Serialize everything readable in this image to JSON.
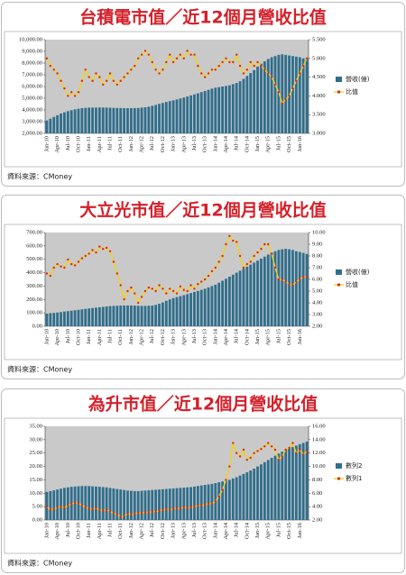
{
  "chart_data": [
    {
      "type": "combo",
      "title": "台積電市值／近12個月營收比值",
      "source": "資料來源：CMoney",
      "categories": [
        "Jan-10",
        null,
        null,
        "Apr-10",
        null,
        null,
        "Jul-10",
        null,
        null,
        "Oct-10",
        null,
        null,
        "Jan-11",
        null,
        null,
        "Apr-11",
        null,
        null,
        "Jul-11",
        null,
        null,
        "Oct-11",
        null,
        null,
        "Jan-12",
        null,
        null,
        "Apr-12",
        null,
        null,
        "Jul-12",
        null,
        null,
        "Oct-12",
        null,
        null,
        "Jan-13",
        null,
        null,
        "Apr-13",
        null,
        null,
        "Jul-13",
        null,
        null,
        "Oct-13",
        null,
        null,
        "Jan-14",
        null,
        null,
        "Apr-14",
        null,
        null,
        "Jul-14",
        null,
        null,
        "Oct-14",
        null,
        null,
        "Jan-15",
        null,
        null,
        "Apr-15",
        null,
        null,
        "Jul-15",
        null,
        null,
        "Oct-15",
        null,
        null,
        "Jan-16",
        null,
        null
      ],
      "series": [
        {
          "name": "營收(億)",
          "type": "bar",
          "color": "#2f6e8c",
          "values": [
            3100,
            3250,
            3400,
            3550,
            3700,
            3800,
            3900,
            3980,
            4050,
            4100,
            4150,
            4180,
            4200,
            4200,
            4200,
            4210,
            4210,
            4200,
            4190,
            4180,
            4170,
            4160,
            4150,
            4150,
            4150,
            4160,
            4170,
            4200,
            4230,
            4280,
            4350,
            4430,
            4520,
            4600,
            4680,
            4750,
            4820,
            4900,
            4980,
            5060,
            5150,
            5240,
            5330,
            5420,
            5520,
            5620,
            5720,
            5820,
            5900,
            5950,
            6000,
            6050,
            6100,
            6200,
            6300,
            6450,
            6650,
            6900,
            7150,
            7400,
            7700,
            7950,
            8150,
            8350,
            8500,
            8600,
            8700,
            8750,
            8700,
            8650,
            8600,
            8550,
            8500,
            8400,
            8350
          ]
        },
        {
          "name": "比值",
          "type": "line",
          "axis": "y2",
          "color": "#f2d21b",
          "marker_color": "#d9281e",
          "values": [
            5.0,
            4.8,
            4.7,
            4.6,
            4.4,
            4.2,
            4.0,
            4.1,
            4.0,
            4.1,
            4.4,
            4.7,
            4.5,
            4.4,
            4.6,
            4.5,
            4.3,
            4.4,
            4.6,
            4.4,
            4.3,
            4.4,
            4.5,
            4.6,
            4.7,
            4.8,
            5.0,
            5.1,
            5.2,
            5.1,
            4.9,
            4.7,
            4.6,
            4.7,
            4.9,
            5.1,
            4.9,
            5.0,
            5.1,
            5.0,
            5.2,
            5.1,
            5.1,
            4.8,
            4.6,
            4.5,
            4.6,
            4.7,
            4.7,
            4.8,
            4.9,
            5.0,
            4.9,
            4.9,
            5.1,
            4.8,
            4.6,
            4.7,
            4.9,
            4.8,
            4.9,
            4.8,
            4.7,
            4.6,
            4.5,
            4.3,
            4.1,
            3.8,
            3.9,
            4.0,
            4.2,
            4.4,
            4.6,
            4.8,
            5.0
          ]
        }
      ],
      "ylim": [
        2000,
        10000
      ],
      "yticks": [
        {
          "value": 2000,
          "label": "2,000.00"
        },
        {
          "value": 3000,
          "label": "3,000.00"
        },
        {
          "value": 4000,
          "label": "4,000.00"
        },
        {
          "value": 5000,
          "label": "5,000.00"
        },
        {
          "value": 6000,
          "label": "6,000.00"
        },
        {
          "value": 7000,
          "label": "7,000.00"
        },
        {
          "value": 8000,
          "label": "8,000.00"
        },
        {
          "value": 9000,
          "label": "9,000.00"
        },
        {
          "value": 10000,
          "label": "10,000.00"
        }
      ],
      "y2lim": [
        3,
        5.5
      ],
      "y2ticks": [
        {
          "value": 3,
          "label": "3.000"
        },
        {
          "value": 3.5,
          "label": "3.500"
        },
        {
          "value": 4,
          "label": "4.000"
        },
        {
          "value": 4.5,
          "label": "4.500"
        },
        {
          "value": 5,
          "label": "5.000"
        },
        {
          "value": 5.5,
          "label": "5.500"
        }
      ]
    },
    {
      "type": "combo",
      "title": "大立光市值／近12個月營收比值",
      "source": "資料來源：CMoney",
      "categories": [
        "Jan-10",
        null,
        null,
        "Apr-10",
        null,
        null,
        "Jul-10",
        null,
        null,
        "Oct-10",
        null,
        null,
        "Jan-11",
        null,
        null,
        "Apr-11",
        null,
        null,
        "Jul-11",
        null,
        null,
        "Oct-11",
        null,
        null,
        "Jan-12",
        null,
        null,
        "Apr-12",
        null,
        null,
        "Jul-12",
        null,
        null,
        "Oct-12",
        null,
        null,
        "Jan-13",
        null,
        null,
        "Apr-13",
        null,
        null,
        "Jul-13",
        null,
        null,
        "Oct-13",
        null,
        null,
        "Jan-14",
        null,
        null,
        "Apr-14",
        null,
        null,
        "Jul-14",
        null,
        null,
        "Oct-14",
        null,
        null,
        "Jan-15",
        null,
        null,
        "Apr-15",
        null,
        null,
        "Jul-15",
        null,
        null,
        "Oct-15",
        null,
        null,
        "Jan-16",
        null,
        null
      ],
      "series": [
        {
          "name": "營收(億)",
          "type": "bar",
          "color": "#2f6e8c",
          "values": [
            95,
            98,
            100,
            103,
            106,
            110,
            113,
            116,
            120,
            123,
            126,
            130,
            133,
            136,
            139,
            142,
            145,
            148,
            150,
            152,
            153,
            154,
            155,
            155,
            155,
            154,
            153,
            152,
            152,
            153,
            155,
            160,
            168,
            178,
            190,
            200,
            210,
            218,
            225,
            232,
            240,
            248,
            256,
            264,
            272,
            280,
            290,
            300,
            310,
            325,
            340,
            355,
            370,
            385,
            400,
            415,
            430,
            445,
            460,
            475,
            490,
            505,
            520,
            535,
            550,
            560,
            570,
            575,
            578,
            575,
            570,
            560,
            555,
            548,
            540
          ]
        },
        {
          "name": "比值",
          "type": "line",
          "axis": "y2",
          "color": "#f2d21b",
          "marker_color": "#d9281e",
          "values": [
            6.5,
            6.3,
            7.0,
            7.3,
            7.1,
            7.0,
            7.7,
            7.3,
            7.2,
            7.5,
            7.8,
            8.0,
            8.2,
            8.5,
            8.3,
            8.8,
            8.6,
            8.7,
            8.4,
            7.5,
            6.5,
            5.5,
            4.3,
            5.0,
            5.3,
            4.8,
            4.0,
            4.5,
            5.0,
            5.3,
            5.2,
            5.0,
            5.5,
            5.2,
            4.8,
            5.2,
            5.0,
            4.8,
            5.4,
            5.1,
            5.0,
            5.5,
            5.2,
            5.6,
            5.8,
            6.0,
            6.3,
            6.7,
            7.0,
            7.5,
            8.0,
            9.0,
            9.7,
            9.3,
            9.2,
            8.0,
            7.0,
            7.3,
            7.5,
            8.0,
            8.3,
            8.6,
            9.0,
            9.0,
            8.2,
            7.0,
            6.0,
            6.0,
            5.8,
            5.6,
            5.5,
            5.8,
            6.0,
            6.2,
            6.2
          ]
        }
      ],
      "ylim": [
        0,
        700
      ],
      "yticks": [
        {
          "value": 0,
          "label": "0.00"
        },
        {
          "value": 100,
          "label": "100.00"
        },
        {
          "value": 200,
          "label": "200.00"
        },
        {
          "value": 300,
          "label": "300.00"
        },
        {
          "value": 400,
          "label": "400.00"
        },
        {
          "value": 500,
          "label": "500.00"
        },
        {
          "value": 600,
          "label": "600.00"
        },
        {
          "value": 700,
          "label": "700.00"
        }
      ],
      "y2lim": [
        2,
        10
      ],
      "y2ticks": [
        {
          "value": 2,
          "label": "2.00"
        },
        {
          "value": 3,
          "label": "3.00"
        },
        {
          "value": 4,
          "label": "4.00"
        },
        {
          "value": 5,
          "label": "5.00"
        },
        {
          "value": 6,
          "label": "6.00"
        },
        {
          "value": 7,
          "label": "7.00"
        },
        {
          "value": 8,
          "label": "8.00"
        },
        {
          "value": 9,
          "label": "9.00"
        },
        {
          "value": 10,
          "label": "10.00"
        }
      ]
    },
    {
      "type": "combo",
      "title": "為升市值／近12個月營收比值",
      "source": "資料來源：CMoney",
      "categories": [
        "Jan-10",
        null,
        null,
        "Apr-10",
        null,
        null,
        "Jul-10",
        null,
        null,
        "Oct-10",
        null,
        null,
        "Jan-11",
        null,
        null,
        "Apr-11",
        null,
        null,
        "Jul-11",
        null,
        null,
        "Oct-11",
        null,
        null,
        "Jan-12",
        null,
        null,
        "Apr-12",
        null,
        null,
        "Jul-12",
        null,
        null,
        "Oct-12",
        null,
        null,
        "Jan-13",
        null,
        null,
        "Apr-13",
        null,
        null,
        "Jul-13",
        null,
        null,
        "Oct-13",
        null,
        null,
        "Jan-14",
        null,
        null,
        "Apr-14",
        null,
        null,
        "Jul-14",
        null,
        null,
        "Oct-14",
        null,
        null,
        "Jan-15",
        null,
        null,
        "Apr-15",
        null,
        null,
        "Jul-15",
        null,
        null,
        "Oct-15",
        null,
        null,
        "Jan-16",
        null,
        null
      ],
      "series": [
        {
          "name": "數列2",
          "type": "bar",
          "color": "#2f6e8c",
          "values": [
            10.5,
            10.8,
            11.1,
            11.4,
            11.7,
            12.0,
            12.2,
            12.4,
            12.5,
            12.6,
            12.7,
            12.7,
            12.7,
            12.6,
            12.5,
            12.4,
            12.3,
            12.2,
            12.0,
            11.8,
            11.6,
            11.4,
            11.2,
            11.0,
            10.9,
            10.8,
            10.8,
            10.9,
            11.0,
            11.1,
            11.2,
            11.3,
            11.4,
            11.5,
            11.6,
            11.7,
            11.8,
            11.9,
            12.0,
            12.1,
            12.2,
            12.3,
            12.5,
            12.7,
            12.9,
            13.1,
            13.3,
            13.5,
            13.8,
            14.1,
            14.4,
            14.7,
            15.0,
            15.5,
            16.0,
            16.6,
            17.2,
            17.8,
            18.5,
            19.2,
            20.0,
            20.8,
            21.6,
            22.4,
            23.2,
            24.0,
            24.8,
            25.5,
            26.2,
            26.8,
            27.3,
            27.8,
            28.3,
            28.8,
            29.3
          ]
        },
        {
          "name": "數列1",
          "type": "line",
          "axis": "y2",
          "color": "#f2d21b",
          "marker_color": "#d9281e",
          "values": [
            4.0,
            3.5,
            3.6,
            3.9,
            4.0,
            3.8,
            4.2,
            4.4,
            4.6,
            4.5,
            4.2,
            3.9,
            3.7,
            3.6,
            3.8,
            3.5,
            3.4,
            3.5,
            3.3,
            3.0,
            2.8,
            2.5,
            2.6,
            3.0,
            2.8,
            2.9,
            3.1,
            3.0,
            3.2,
            3.1,
            3.3,
            3.2,
            3.4,
            3.5,
            3.6,
            3.5,
            3.7,
            3.8,
            3.7,
            3.9,
            3.8,
            3.9,
            4.0,
            4.2,
            4.1,
            4.3,
            4.5,
            4.4,
            4.8,
            5.5,
            6.5,
            8.0,
            10.0,
            13.5,
            12.0,
            11.5,
            12.5,
            11.0,
            11.3,
            12.0,
            12.3,
            12.6,
            13.0,
            13.5,
            13.0,
            12.5,
            11.0,
            11.5,
            12.5,
            12.8,
            13.5,
            12.0,
            12.5,
            11.8,
            12.3
          ]
        }
      ],
      "ylim": [
        0,
        35
      ],
      "yticks": [
        {
          "value": 0,
          "label": "0.00"
        },
        {
          "value": 5,
          "label": "5.00"
        },
        {
          "value": 10,
          "label": "10.00"
        },
        {
          "value": 15,
          "label": "15.00"
        },
        {
          "value": 20,
          "label": "20.00"
        },
        {
          "value": 25,
          "label": "25.00"
        },
        {
          "value": 30,
          "label": "30.00"
        },
        {
          "value": 35,
          "label": "35.00"
        }
      ],
      "y2lim": [
        2,
        16
      ],
      "y2ticks": [
        {
          "value": 2,
          "label": "2.00"
        },
        {
          "value": 4,
          "label": "4.00"
        },
        {
          "value": 6,
          "label": "6.00"
        },
        {
          "value": 8,
          "label": "8.00"
        },
        {
          "value": 10,
          "label": "10.00"
        },
        {
          "value": 12,
          "label": "12.00"
        },
        {
          "value": 14,
          "label": "14.00"
        },
        {
          "value": 16,
          "label": "16.00"
        }
      ]
    }
  ]
}
